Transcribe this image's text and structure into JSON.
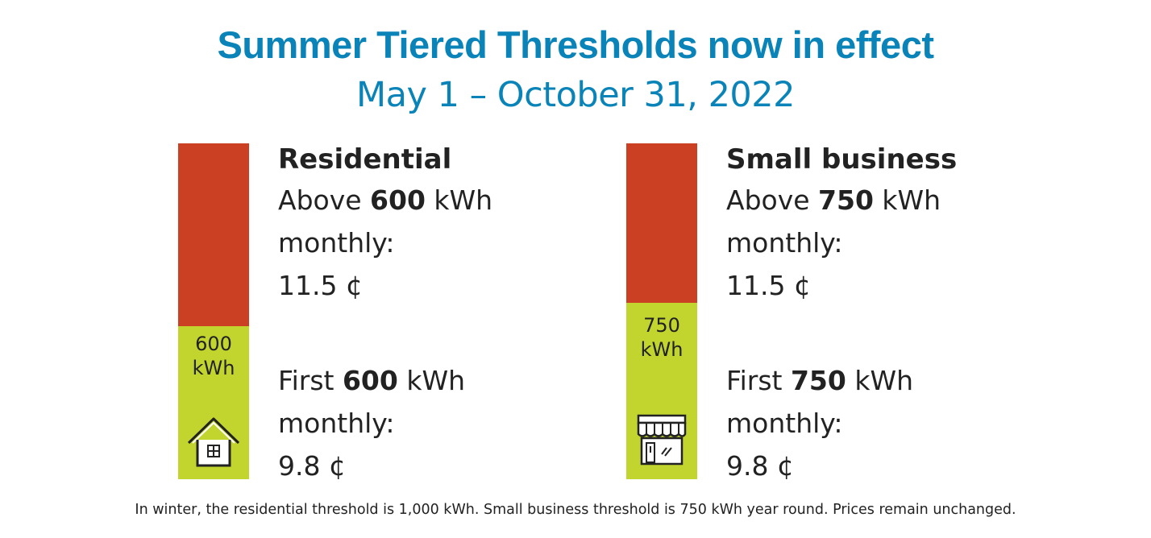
{
  "header": {
    "title": "Summer Tiered Thresholds now in effect",
    "subtitle": "May 1 – October 31, 2022"
  },
  "colors": {
    "accent": "#0a84b8",
    "upper_tier": "#cb4022",
    "lower_tier": "#c2d52f"
  },
  "residential": {
    "icon": "house-icon",
    "bar_label_line1": "600",
    "bar_label_line2": "kWh",
    "heading": "Residential",
    "above_prefix": "Above ",
    "above_value": "600",
    "above_suffix": " kWh",
    "above_line2": "monthly:",
    "above_price": "11.5 ¢",
    "first_prefix": "First ",
    "first_value": "600",
    "first_suffix": " kWh",
    "first_line2": "monthly:",
    "first_price": "9.8 ¢"
  },
  "small_business": {
    "icon": "storefront-icon",
    "bar_label_line1": "750",
    "bar_label_line2": "kWh",
    "heading": "Small business",
    "above_prefix": "Above ",
    "above_value": "750",
    "above_suffix": " kWh",
    "above_line2": "monthly:",
    "above_price": "11.5 ¢",
    "first_prefix": "First ",
    "first_value": "750",
    "first_suffix": " kWh",
    "first_line2": "monthly:",
    "first_price": "9.8 ¢"
  },
  "footnote": "In winter, the residential threshold is 1,000 kWh. Small business threshold is 750 kWh year round. Prices remain unchanged."
}
